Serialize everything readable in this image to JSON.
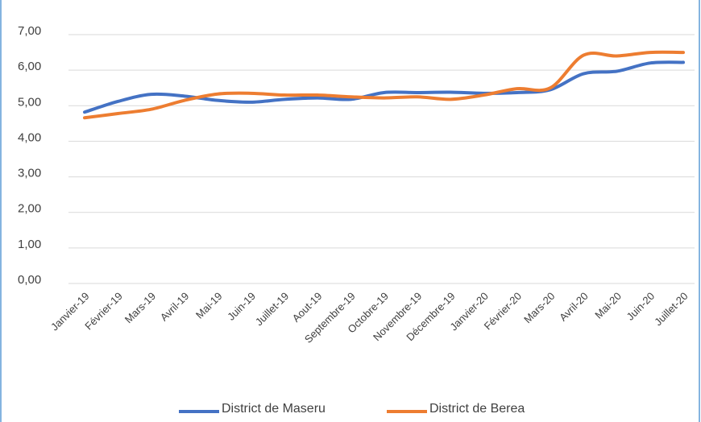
{
  "chart_data": {
    "type": "line",
    "categories": [
      "Janvier-19",
      "Février-19",
      "Mars-19",
      "Avril-19",
      "Mai-19",
      "Juin-19",
      "Juillet-19",
      "Aout-19",
      "Septembre-19",
      "Octobre-19",
      "Novembre-19",
      "Décembre-19",
      "Janvier-20",
      "Février-20",
      "Mars-20",
      "Avril-20",
      "Mai-20",
      "Juin-20",
      "Juillet-20"
    ],
    "series": [
      {
        "name": "District de Maseru",
        "color": "#4472c4",
        "values": [
          4.82,
          5.12,
          5.32,
          5.27,
          5.15,
          5.1,
          5.18,
          5.22,
          5.18,
          5.37,
          5.37,
          5.38,
          5.35,
          5.37,
          5.45,
          5.9,
          5.97,
          6.2,
          6.22
        ]
      },
      {
        "name": "District de Berea",
        "color": "#ed7d31",
        "values": [
          4.66,
          4.78,
          4.9,
          5.15,
          5.33,
          5.35,
          5.3,
          5.3,
          5.25,
          5.22,
          5.25,
          5.18,
          5.3,
          5.48,
          5.5,
          6.42,
          6.4,
          6.5,
          6.5
        ]
      }
    ],
    "ylim": [
      0,
      7
    ],
    "yticks": [
      {
        "value": 0,
        "label": "0,00"
      },
      {
        "value": 1,
        "label": "1,00"
      },
      {
        "value": 2,
        "label": "2,00"
      },
      {
        "value": 3,
        "label": "3,00"
      },
      {
        "value": 4,
        "label": "4,00"
      },
      {
        "value": 5,
        "label": "5,00"
      },
      {
        "value": 6,
        "label": "6,00"
      },
      {
        "value": 7,
        "label": "7,00"
      }
    ],
    "grid": true,
    "legend": "bottom"
  }
}
